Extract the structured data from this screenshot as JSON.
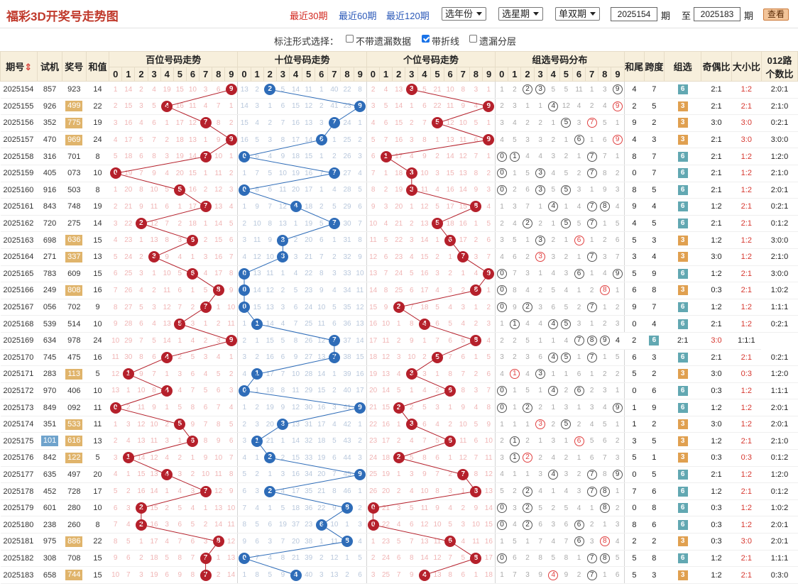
{
  "header": {
    "title": "福彩3D开奖号走势图",
    "links": [
      "最近30期",
      "最近60期",
      "最近120期"
    ],
    "active_link": 0,
    "year_select": "选年份",
    "weekday_select": "选星期",
    "parity_select": "单双期",
    "from_period": "2025154",
    "from_label": "期",
    "to_prefix": "至",
    "to_period": "2025183",
    "to_label": "期",
    "view_button": "查看"
  },
  "options": {
    "label": "标注形式选择：",
    "items": [
      {
        "label": "不带遗漏数据",
        "checked": false
      },
      {
        "label": "带折线",
        "checked": true
      },
      {
        "label": "遗漏分层",
        "checked": false
      }
    ]
  },
  "table": {
    "headers": {
      "period": "期号",
      "sort_icon": "sort-icon",
      "trial": "试机",
      "draw": "奖号",
      "sum": "和值",
      "hundreds": "百位号码走势",
      "tens": "十位号码走势",
      "units": "个位号码走势",
      "group": "组选号码分布",
      "tail": "和尾",
      "span": "跨度",
      "group_sel": "组选",
      "odd_even": "奇偶比",
      "big_small": "大小比",
      "mod3_line1": "012路",
      "mod3_line2": "个数比"
    },
    "digits": [
      "0",
      "1",
      "2",
      "3",
      "4",
      "5",
      "6",
      "7",
      "8",
      "9"
    ],
    "rows": [
      {
        "p": "2025154",
        "t": "857",
        "d": "923",
        "dh": "",
        "s": "14",
        "h": "1|14|2|4|19|15|10|3|6|9",
        "te": "13|2|2|5|14|11|1|40|22|8",
        "u": "2|4|13|3|5|21|10|8|3|1",
        "g": "1|2|@2|@3|5|5|11|1|3|@9",
        "tail": "4",
        "sp": "7",
        "gs": "6",
        "gs2": "6",
        "oe": "2:1",
        "bs": "1:2",
        "m": "2:0:1"
      },
      {
        "p": "2025155",
        "t": "926",
        "d": "499",
        "dh": "h",
        "s": "22",
        "h": "2|15|3|5|4|16|11|4|7|1",
        "te": "14|3|1|6|15|12|2|41|23|9",
        "u": "3|5|14|1|6|22|11|9|4|9",
        "g": "2|3|1|1|@4|12|4|2|4|!9",
        "tail": "2",
        "sp": "5",
        "gs": "1",
        "gs2": "3",
        "oe": "2:1",
        "bs": "2:1",
        "m": "2:1:0"
      },
      {
        "p": "2025156",
        "t": "352",
        "d": "775",
        "dh": "h",
        "s": "19",
        "h": "3|16|4|6|1|17|12|7|8|2",
        "te": "15|4|2|7|16|13|3|7|24|1",
        "u": "4|6|15|2|7|5|12|10|5|1",
        "g": "3|4|2|2|1|@5|3|!7|5|1",
        "tail": "9",
        "sp": "2",
        "gs": "2",
        "gs2": "3",
        "oe": "3:0",
        "bs": "3:0",
        "m": "0:2:1"
      },
      {
        "p": "2025157",
        "t": "470",
        "d": "969",
        "dh": "h",
        "s": "24",
        "h": "4|17|5|7|2|18|13|1|9|9",
        "te": "16|5|3|8|17|14|6|1|25|2",
        "u": "5|7|16|3|8|1|13|11|6|9",
        "g": "4|5|3|3|2|1|@6|1|6|!9",
        "tail": "4",
        "sp": "3",
        "gs": "2",
        "gs2": "3",
        "oe": "2:1",
        "bs": "3:0",
        "m": "3:0:0"
      },
      {
        "p": "2025158",
        "t": "316",
        "d": "701",
        "dh": "",
        "s": "8",
        "h": "5|18|6|8|3|19|14|7|10|1",
        "te": "0|6|4|9|18|15|1|2|26|3",
        "u": "6|1|17|4|9|2|14|12|7|1",
        "g": "@0|@1|4|4|3|2|1|@7|7|1",
        "tail": "8",
        "sp": "7",
        "gs": "6",
        "gs2": "1",
        "oe": "2:1",
        "bs": "1:2",
        "m": "1:2:0"
      },
      {
        "p": "2025159",
        "t": "405",
        "d": "073",
        "dh": "",
        "s": "10",
        "h": "0|19|7|9|4|20|15|1|11|2",
        "te": "1|7|5|10|19|16|7|3|27|4",
        "u": "7|1|18|3|10|3|15|13|8|2",
        "g": "@0|1|5|@3|4|5|2|@7|8|2",
        "tail": "0",
        "sp": "7",
        "gs": "6",
        "gs2": "2",
        "oe": "2:1",
        "bs": "1:2",
        "m": "2:1:0"
      },
      {
        "p": "2025160",
        "t": "916",
        "d": "503",
        "dh": "",
        "s": "8",
        "h": "1|20|8|10|5|5|16|2|12|3",
        "te": "0|8|6|11|20|17|1|4|28|5",
        "u": "8|2|19|3|11|4|16|14|9|3",
        "g": "@0|2|6|@3|5|@5|3|1|9|3",
        "tail": "8",
        "sp": "5",
        "gs": "6",
        "gs2": "5",
        "oe": "2:1",
        "bs": "1:2",
        "m": "2:0:1"
      },
      {
        "p": "2025161",
        "t": "843",
        "d": "748",
        "dh": "",
        "s": "19",
        "h": "2|21|9|11|6|1|17|7|13|4",
        "te": "1|9|7|12|4|18|2|5|29|6",
        "u": "9|3|20|1|12|5|17|15|8|4",
        "g": "1|3|7|1|@4|1|4|@7|@8|4",
        "tail": "9",
        "sp": "4",
        "gs": "6",
        "gs2": "4",
        "oe": "1:2",
        "bs": "2:1",
        "m": "0:2:1"
      },
      {
        "p": "2025162",
        "t": "720",
        "d": "275",
        "dh": "",
        "s": "14",
        "h": "3|22|2|12|7|2|18|1|14|5",
        "te": "2|10|8|13|1|19|5|7|30|7",
        "u": "10|4|21|2|13|5|18|16|1|5",
        "g": "2|4|@2|2|1|@5|5|@7|1|5",
        "tail": "4",
        "sp": "5",
        "gs": "6",
        "gs2": "5",
        "oe": "2:1",
        "bs": "2:1",
        "m": "0:1:2"
      },
      {
        "p": "2025163",
        "t": "698",
        "d": "636",
        "dh": "h",
        "s": "15",
        "h": "4|23|1|13|8|3|6|2|15|6",
        "te": "3|11|9|3|2|20|6|1|31|8",
        "u": "11|5|22|3|14|1|6|17|2|6",
        "g": "3|5|1|@3|2|1|!6|1|2|6",
        "tail": "5",
        "sp": "3",
        "gs": "1",
        "gs2": "3",
        "oe": "1:2",
        "bs": "1:2",
        "m": "3:0:0"
      },
      {
        "p": "2025164",
        "t": "271",
        "d": "337",
        "dh": "h",
        "s": "13",
        "h": "5|24|2|3|9|4|1|3|16|7",
        "te": "4|12|10|3|3|21|7|2|32|9",
        "u": "12|6|23|4|15|2|1|7|3|7",
        "g": "4|6|2|!3|3|2|1|@7|3|7",
        "tail": "3",
        "sp": "4",
        "gs": "2",
        "gs2": "3",
        "oe": "3:0",
        "bs": "1:2",
        "m": "2:1:0"
      },
      {
        "p": "2025165",
        "t": "783",
        "d": "609",
        "dh": "",
        "s": "15",
        "h": "6|25|3|1|10|5|6|4|17|8",
        "te": "0|13|11|1|4|22|8|3|33|10",
        "u": "13|7|24|5|16|3|2|1|4|9",
        "g": "@0|7|3|1|4|3|@6|1|4|@9",
        "tail": "5",
        "sp": "9",
        "gs": "6",
        "gs2": "1",
        "oe": "1:2",
        "bs": "2:1",
        "m": "3:0:0"
      },
      {
        "p": "2025166",
        "t": "249",
        "d": "808",
        "dh": "h",
        "s": "16",
        "h": "7|26|4|2|11|6|1|5|8|9",
        "te": "0|14|12|2|5|23|9|4|34|11",
        "u": "14|8|25|6|17|4|3|2|8|1",
        "g": "@0|8|4|2|5|4|1|2|!8|1",
        "tail": "6",
        "sp": "8",
        "gs": "1",
        "gs2": "3",
        "oe": "0:3",
        "bs": "2:1",
        "m": "1:0:2"
      },
      {
        "p": "2025167",
        "t": "056",
        "d": "702",
        "dh": "",
        "s": "9",
        "h": "8|27|5|3|12|7|2|7|1|10",
        "te": "0|15|13|3|6|24|10|5|35|12",
        "u": "15|9|2|7|18|5|4|3|1|2",
        "g": "@0|9|@2|3|6|5|2|@7|1|2",
        "tail": "9",
        "sp": "7",
        "gs": "6",
        "gs2": "1",
        "oe": "1:2",
        "bs": "1:2",
        "m": "1:1:1"
      },
      {
        "p": "2025168",
        "t": "539",
        "d": "514",
        "dh": "",
        "s": "10",
        "h": "9|28|6|4|13|5|3|1|2|11",
        "te": "1|1|14|4|7|25|11|6|36|13",
        "u": "16|10|1|8|4|6|5|4|2|3",
        "g": "1|@1|4|4|@4|@5|3|1|2|3",
        "tail": "0",
        "sp": "4",
        "gs": "6",
        "gs2": "2",
        "oe": "2:1",
        "bs": "1:2",
        "m": "0:2:1"
      },
      {
        "p": "2025169",
        "t": "634",
        "d": "978",
        "dh": "",
        "s": "24",
        "h": "10|29|7|5|14|1|4|2|3|9",
        "te": "2|1|15|5|8|26|12|7|37|14",
        "u": "17|11|2|9|1|7|6|5|8|4",
        "g": "2|2|5|1|1|4|@7|@8|@9",
        "tail": "4",
        "sp": "2",
        "gs": "6",
        "gs2": "3",
        "oe": "2:1",
        "bs": "3:0",
        "m": "1:1:1"
      },
      {
        "p": "2025170",
        "t": "745",
        "d": "475",
        "dh": "",
        "s": "16",
        "h": "11|30|8|6|4|2|5|3|4|1",
        "te": "3|2|16|6|9|27|13|7|38|15",
        "u": "18|12|3|10|2|5|7|6|1|5",
        "g": "3|2|3|6|@4|@5|1|@7|1|5",
        "tail": "6",
        "sp": "3",
        "gs": "6",
        "gs2": "4",
        "oe": "2:1",
        "bs": "2:1",
        "m": "0:2:1"
      },
      {
        "p": "2025171",
        "t": "283",
        "d": "113",
        "dh": "h",
        "s": "5",
        "h": "12|1|9|7|1|3|6|4|5|2",
        "te": "4|1|17|7|10|28|14|1|39|16",
        "u": "19|13|4|3|3|1|8|7|2|6",
        "g": "4|!1|4|@3|1|1|6|1|2|2",
        "tail": "5",
        "sp": "2",
        "gs": "1",
        "gs2": "3",
        "oe": "3:0",
        "bs": "0:3",
        "m": "1:2:0"
      },
      {
        "p": "2025172",
        "t": "970",
        "d": "406",
        "dh": "",
        "s": "10",
        "h": "13|1|10|8|4|4|7|5|6|3",
        "te": "0|1|18|8|11|29|15|2|40|17",
        "u": "20|14|5|1|4|2|6|8|3|7",
        "g": "@0|1|5|1|@4|2|@6|2|3|1",
        "tail": "0",
        "sp": "6",
        "gs": "6",
        "gs2": "1",
        "oe": "0:3",
        "bs": "1:2",
        "m": "1:1:1"
      },
      {
        "p": "2025173",
        "t": "849",
        "d": "092",
        "dh": "",
        "s": "11",
        "h": "0|2|11|9|1|5|8|6|7|4",
        "te": "1|2|19|9|12|30|16|3|41|9",
        "u": "21|15|2|2|5|3|1|9|4|8",
        "g": "@0|1|@2|2|1|3|1|3|4|@9",
        "tail": "1",
        "sp": "9",
        "gs": "6",
        "gs2": "1",
        "oe": "1:2",
        "bs": "1:2",
        "m": "2:0:1"
      },
      {
        "p": "2025174",
        "t": "351",
        "d": "533",
        "dh": "h",
        "s": "11",
        "h": "1|3|12|10|2|5|9|7|8|5",
        "te": "2|3|20|3|13|31|17|4|42|1",
        "u": "22|16|1|3|6|4|2|10|5|9",
        "g": "1|1|1|!3|2|@5|2|4|5|1",
        "tail": "1",
        "sp": "2",
        "gs": "1",
        "gs2": "3",
        "oe": "3:0",
        "bs": "1:2",
        "m": "2:0:1"
      },
      {
        "p": "2025175",
        "t": "101",
        "d": "616",
        "dh": "h",
        "s": "13",
        "tb": "1",
        "h": "2|4|13|11|3|1|6|8|9|6",
        "te": "3|1|21|1|14|32|18|5|43|2",
        "u": "23|17|2|4|7|5|6|11|6|10",
        "g": "2|@1|2|1|3|1|!6|5|6|2",
        "tail": "3",
        "sp": "5",
        "gs": "2",
        "gs2": "3",
        "oe": "1:2",
        "bs": "2:1",
        "m": "2:1:0"
      },
      {
        "p": "2025176",
        "t": "842",
        "d": "122",
        "dh": "h",
        "s": "5",
        "h": "3|1|14|12|4|2|1|9|10|7",
        "te": "4|1|2|2|15|33|19|6|44|3",
        "u": "24|18|2|5|8|6|1|12|7|11",
        "g": "3|@1|!2|2|4|2|1|6|7|3",
        "tail": "5",
        "sp": "1",
        "gs": "1",
        "gs2": "3",
        "oe": "0:3",
        "bs": "0:3",
        "m": "0:1:2"
      },
      {
        "p": "2025177",
        "t": "635",
        "d": "497",
        "dh": "",
        "s": "20",
        "h": "4|1|15|13|4|3|2|10|11|8",
        "te": "5|2|1|3|16|34|20|7|45|9",
        "u": "25|19|1|3|9|7|2|7|8|12",
        "g": "4|1|1|3|@4|3|2|@7|8|@9",
        "tail": "0",
        "sp": "5",
        "gs": "6",
        "gs2": "1",
        "oe": "2:1",
        "bs": "1:2",
        "m": "1:2:0"
      },
      {
        "p": "2025178",
        "t": "452",
        "d": "728",
        "dh": "",
        "s": "17",
        "h": "5|2|16|14|1|4|3|7|12|9",
        "te": "6|3|2|4|17|35|21|8|46|1",
        "u": "26|20|2|4|10|8|3|1|8|13",
        "g": "5|2|@2|4|1|4|3|@7|@8|1",
        "tail": "7",
        "sp": "6",
        "gs": "6",
        "gs2": "2",
        "oe": "1:2",
        "bs": "2:1",
        "m": "0:1:2"
      },
      {
        "p": "2025179",
        "t": "601",
        "d": "280",
        "dh": "",
        "s": "10",
        "h": "6|3|2|15|2|5|4|1|13|10",
        "te": "7|4|1|5|18|36|22|9|8|2",
        "u": "0|21|3|5|11|9|4|2|9|14",
        "g": "@0|3|@2|5|2|5|4|1|@8|2",
        "tail": "0",
        "sp": "8",
        "gs": "6",
        "gs2": "3",
        "oe": "0:3",
        "bs": "1:2",
        "m": "1:0:2"
      },
      {
        "p": "2025180",
        "t": "238",
        "d": "260",
        "dh": "",
        "s": "8",
        "h": "7|4|2|16|3|6|5|2|14|11",
        "te": "8|5|6|19|37|23|6|10|1|3",
        "u": "0|22|4|6|12|10|5|3|10|15",
        "g": "@0|4|@2|6|3|6|@6|2|1|3",
        "tail": "8",
        "sp": "6",
        "gs": "6",
        "gs2": "4",
        "oe": "0:3",
        "bs": "1:2",
        "m": "2:0:1"
      },
      {
        "p": "2025181",
        "t": "975",
        "d": "886",
        "dh": "h",
        "s": "22",
        "h": "8|5|1|17|4|7|6|3|8|12",
        "te": "9|6|3|7|20|38|1|11|8|4",
        "u": "1|23|5|7|13|11|6|4|11|16",
        "g": "1|5|1|7|4|7|@6|3|!8|4",
        "tail": "2",
        "sp": "2",
        "gs": "1",
        "gs2": "3",
        "oe": "0:3",
        "bs": "3:0",
        "m": "2:0:1"
      },
      {
        "p": "2025182",
        "t": "308",
        "d": "708",
        "dh": "",
        "s": "15",
        "h": "9|6|2|18|5|8|7|7|1|13",
        "te": "0|7|4|8|21|39|2|12|1|5",
        "u": "2|24|6|8|14|12|7|5|8|17",
        "g": "@0|6|2|8|5|8|1|@7|@8|5",
        "tail": "5",
        "sp": "8",
        "gs": "6",
        "gs2": "1",
        "oe": "1:2",
        "bs": "2:1",
        "m": "1:1:1"
      },
      {
        "p": "2025183",
        "t": "658",
        "d": "744",
        "dh": "h",
        "s": "15",
        "h": "10|7|3|19|6|9|8|7|2|14",
        "te": "1|8|5|9|4|40|3|13|2|6",
        "u": "3|25|7|9|4|13|8|6|1|18",
        "g": "1|7|3|9|!4|9|2|@7|1|6",
        "tail": "5",
        "sp": "3",
        "gs": "1",
        "gs2": "3",
        "oe": "1:2",
        "bs": "2:1",
        "m": "0:3:0"
      }
    ]
  },
  "colors": {
    "red_ball": "#b5202b",
    "blue_ball": "#2e6cb8",
    "header_bg": "#f7efdc",
    "title": "#c0392b",
    "accent_link": "#d2261d",
    "link": "#2a58b8"
  }
}
